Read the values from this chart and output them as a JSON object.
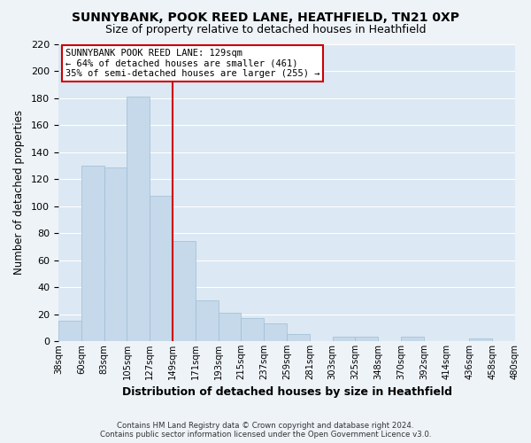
{
  "title": "SUNNYBANK, POOK REED LANE, HEATHFIELD, TN21 0XP",
  "subtitle": "Size of property relative to detached houses in Heathfield",
  "xlabel": "Distribution of detached houses by size in Heathfield",
  "ylabel": "Number of detached properties",
  "bar_labels": [
    "38sqm",
    "60sqm",
    "83sqm",
    "105sqm",
    "127sqm",
    "149sqm",
    "171sqm",
    "193sqm",
    "215sqm",
    "237sqm",
    "259sqm",
    "281sqm",
    "303sqm",
    "325sqm",
    "348sqm",
    "370sqm",
    "392sqm",
    "414sqm",
    "436sqm",
    "458sqm",
    "480sqm"
  ],
  "bar_values": [
    15,
    130,
    129,
    181,
    108,
    74,
    30,
    21,
    17,
    13,
    5,
    0,
    3,
    3,
    0,
    3,
    0,
    0,
    2,
    0
  ],
  "bar_color": "#c5d9ea",
  "bar_edge_color": "#a0bdd4",
  "vline_index": 4,
  "vline_color": "#cc0000",
  "annotation_title": "SUNNYBANK POOK REED LANE: 129sqm",
  "annotation_line2": "← 64% of detached houses are smaller (461)",
  "annotation_line3": "35% of semi-detached houses are larger (255) →",
  "ylim": [
    0,
    220
  ],
  "yticks": [
    0,
    20,
    40,
    60,
    80,
    100,
    120,
    140,
    160,
    180,
    200,
    220
  ],
  "footer_line1": "Contains HM Land Registry data © Crown copyright and database right 2024.",
  "footer_line2": "Contains public sector information licensed under the Open Government Licence v3.0.",
  "bg_color": "#eef3f8",
  "plot_bg_color": "#dce8f3"
}
